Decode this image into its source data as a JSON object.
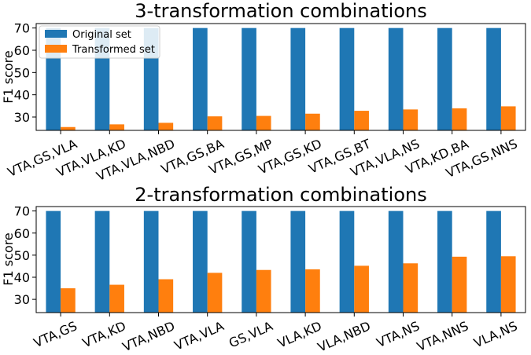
{
  "colors": {
    "original": "#1f77b4",
    "transformed": "#ff7f0e"
  },
  "legend": {
    "placement": "upper-left",
    "items": [
      "Original set",
      "Transformed set"
    ]
  },
  "chart_data": [
    {
      "type": "bar",
      "title": "3-transformation combinations",
      "ylabel": "F1 score",
      "xlabel": "",
      "ylim": [
        24,
        72
      ],
      "yticks": [
        30,
        40,
        50,
        60,
        70
      ],
      "categories": [
        "VTA,GS,VLA",
        "VTA,VLA,KD",
        "VTA,VLA,NBD",
        "VTA,GS,BA",
        "VTA,GS,MP",
        "VTA,GS,KD",
        "VTA,GS,BT",
        "VTA,VLA,NS",
        "VTA,KD,BA",
        "VTA,GS,NNS"
      ],
      "series": [
        {
          "name": "Original set",
          "values": [
            70,
            70,
            70,
            70,
            70,
            70,
            70,
            70,
            70,
            70
          ]
        },
        {
          "name": "Transformed set",
          "values": [
            25.5,
            26.7,
            27.4,
            30.3,
            30.5,
            31.5,
            32.8,
            33.4,
            33.9,
            34.8
          ]
        }
      ],
      "legend": true
    },
    {
      "type": "bar",
      "title": "2-transformation combinations",
      "ylabel": "F1 score",
      "xlabel": "",
      "ylim": [
        24,
        72
      ],
      "yticks": [
        30,
        40,
        50,
        60,
        70
      ],
      "categories": [
        "VTA,GS",
        "VTA,KD",
        "VTA,NBD",
        "VTA,VLA",
        "GS,VLA",
        "VLA,KD",
        "VLA,NBD",
        "VTA,NS",
        "VTA,NNS",
        "VLA,NS"
      ],
      "series": [
        {
          "name": "Original set",
          "values": [
            70,
            70,
            70,
            70,
            70,
            70,
            70,
            70,
            70,
            70
          ]
        },
        {
          "name": "Transformed set",
          "values": [
            35.0,
            36.6,
            39.1,
            42.0,
            43.3,
            43.6,
            45.2,
            46.3,
            49.3,
            49.5
          ]
        }
      ],
      "legend": false
    }
  ]
}
